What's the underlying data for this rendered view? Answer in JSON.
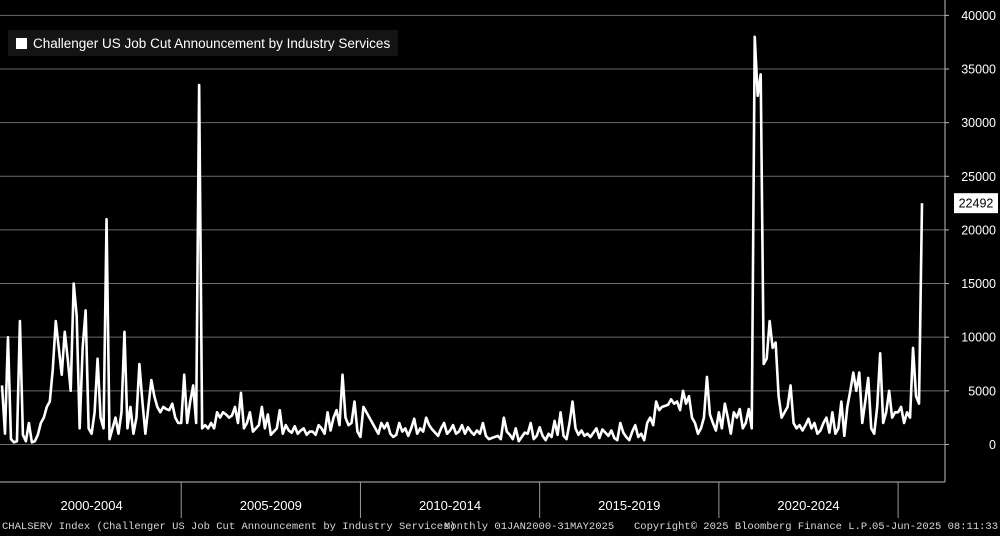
{
  "chart_data": {
    "type": "line",
    "title": "",
    "legend": [
      {
        "name": "Challenger US Job Cut Announcement by Industry Services",
        "color": "#ffffff"
      }
    ],
    "legend_placement": "top-left",
    "grid": true,
    "ylim": [
      -3500,
      40500
    ],
    "y_ticks": [
      0,
      5000,
      10000,
      15000,
      20000,
      25000,
      30000,
      35000,
      40000
    ],
    "x_tick_labels": [
      "2000-2004",
      "2005-2009",
      "2010-2014",
      "2015-2019",
      "2020-2024"
    ],
    "x_start": "2000-01",
    "x_end": "2025-05",
    "last_value_label": "22492",
    "series": [
      {
        "name": "Challenger US Job Cut Announcement by Industry Services",
        "color": "#ffffff",
        "values": [
          5500,
          1000,
          10000,
          500,
          200,
          300,
          11500,
          900,
          300,
          2000,
          200,
          300,
          900,
          2000,
          2500,
          3500,
          4000,
          7000,
          11500,
          9000,
          6500,
          10500,
          8000,
          5000,
          15000,
          12000,
          1500,
          9000,
          12500,
          1500,
          1000,
          3000,
          8000,
          2500,
          1500,
          21000,
          500,
          1500,
          2500,
          1000,
          3000,
          10500,
          1500,
          3500,
          1000,
          2500,
          7500,
          4000,
          1000,
          3500,
          6000,
          4500,
          3500,
          3000,
          3500,
          3300,
          3200,
          3800,
          2500,
          2000,
          2000,
          6500,
          2000,
          4000,
          5500,
          2000,
          33500,
          1500,
          1800,
          1500,
          2000,
          1500,
          3000,
          2500,
          3000,
          2800,
          2500,
          2700,
          3500,
          2000,
          4800,
          1500,
          2000,
          3000,
          1200,
          1500,
          1800,
          3500,
          1500,
          2800,
          900,
          1200,
          1500,
          3200,
          1000,
          1800,
          1300,
          1100,
          1700,
          1000,
          1300,
          1500,
          900,
          1200,
          1200,
          900,
          1800,
          1500,
          1000,
          3000,
          1300,
          2500,
          3200,
          1800,
          6500,
          2500,
          1800,
          2000,
          4000,
          1200,
          700,
          3500,
          3000,
          2500,
          2000,
          1500,
          1000,
          2000,
          1500,
          2000,
          1000,
          700,
          900,
          2000,
          1200,
          1500,
          800,
          1500,
          2400,
          1000,
          1500,
          1200,
          2500,
          1800,
          1400,
          1100,
          800,
          1500,
          2000,
          1000,
          1300,
          1800,
          1000,
          1200,
          1800,
          1000,
          1600,
          1200,
          900,
          1300,
          1000,
          2000,
          800,
          500,
          600,
          700,
          800,
          500,
          2500,
          1200,
          900,
          500,
          1500,
          300,
          700,
          1100,
          1000,
          2000,
          500,
          800,
          1600,
          800,
          400,
          1000,
          700,
          2200,
          900,
          3000,
          800,
          500,
          2000,
          4000,
          1500,
          900,
          1300,
          800,
          1000,
          700,
          1100,
          1500,
          600,
          1400,
          1100,
          800,
          1300,
          600,
          400,
          2000,
          1100,
          700,
          400,
          1200,
          1800,
          700,
          1000,
          400,
          2000,
          2500,
          1800,
          4000,
          3200,
          3500,
          3600,
          3700,
          4200,
          3800,
          4000,
          3200,
          5000,
          3800,
          4500,
          2500,
          2000,
          1000,
          1500,
          2500,
          6300,
          2800,
          2000,
          1300,
          3000,
          1500,
          3800,
          2500,
          1000,
          3000,
          2500,
          3300,
          1500,
          2000,
          3300,
          1500,
          38000,
          32500,
          34500,
          7500,
          8000,
          11500,
          9000,
          9500,
          4500,
          2500,
          3000,
          3500,
          5500,
          2000,
          1500,
          1800,
          1300,
          1800,
          2400,
          1500,
          2000,
          1000,
          1300,
          2000,
          2500,
          1100,
          3000,
          1000,
          1500,
          4000,
          800,
          3500,
          5000,
          6700,
          5000,
          6700,
          2000,
          4000,
          6200,
          1500,
          1000,
          3500,
          8500,
          2000,
          3000,
          5000,
          2500,
          3000,
          3000,
          3500,
          2000,
          3000,
          2500,
          9000,
          4500,
          3800,
          22492
        ]
      }
    ]
  },
  "footer": {
    "source": "CHALSERV Index (Challenger US Job Cut Announcement by Industry Services)",
    "range": "Monthly 01JAN2000-31MAY2025",
    "copyright": "Copyright© 2025 Bloomberg Finance L.P.",
    "timestamp": "05-Jun-2025 08:11:33"
  }
}
